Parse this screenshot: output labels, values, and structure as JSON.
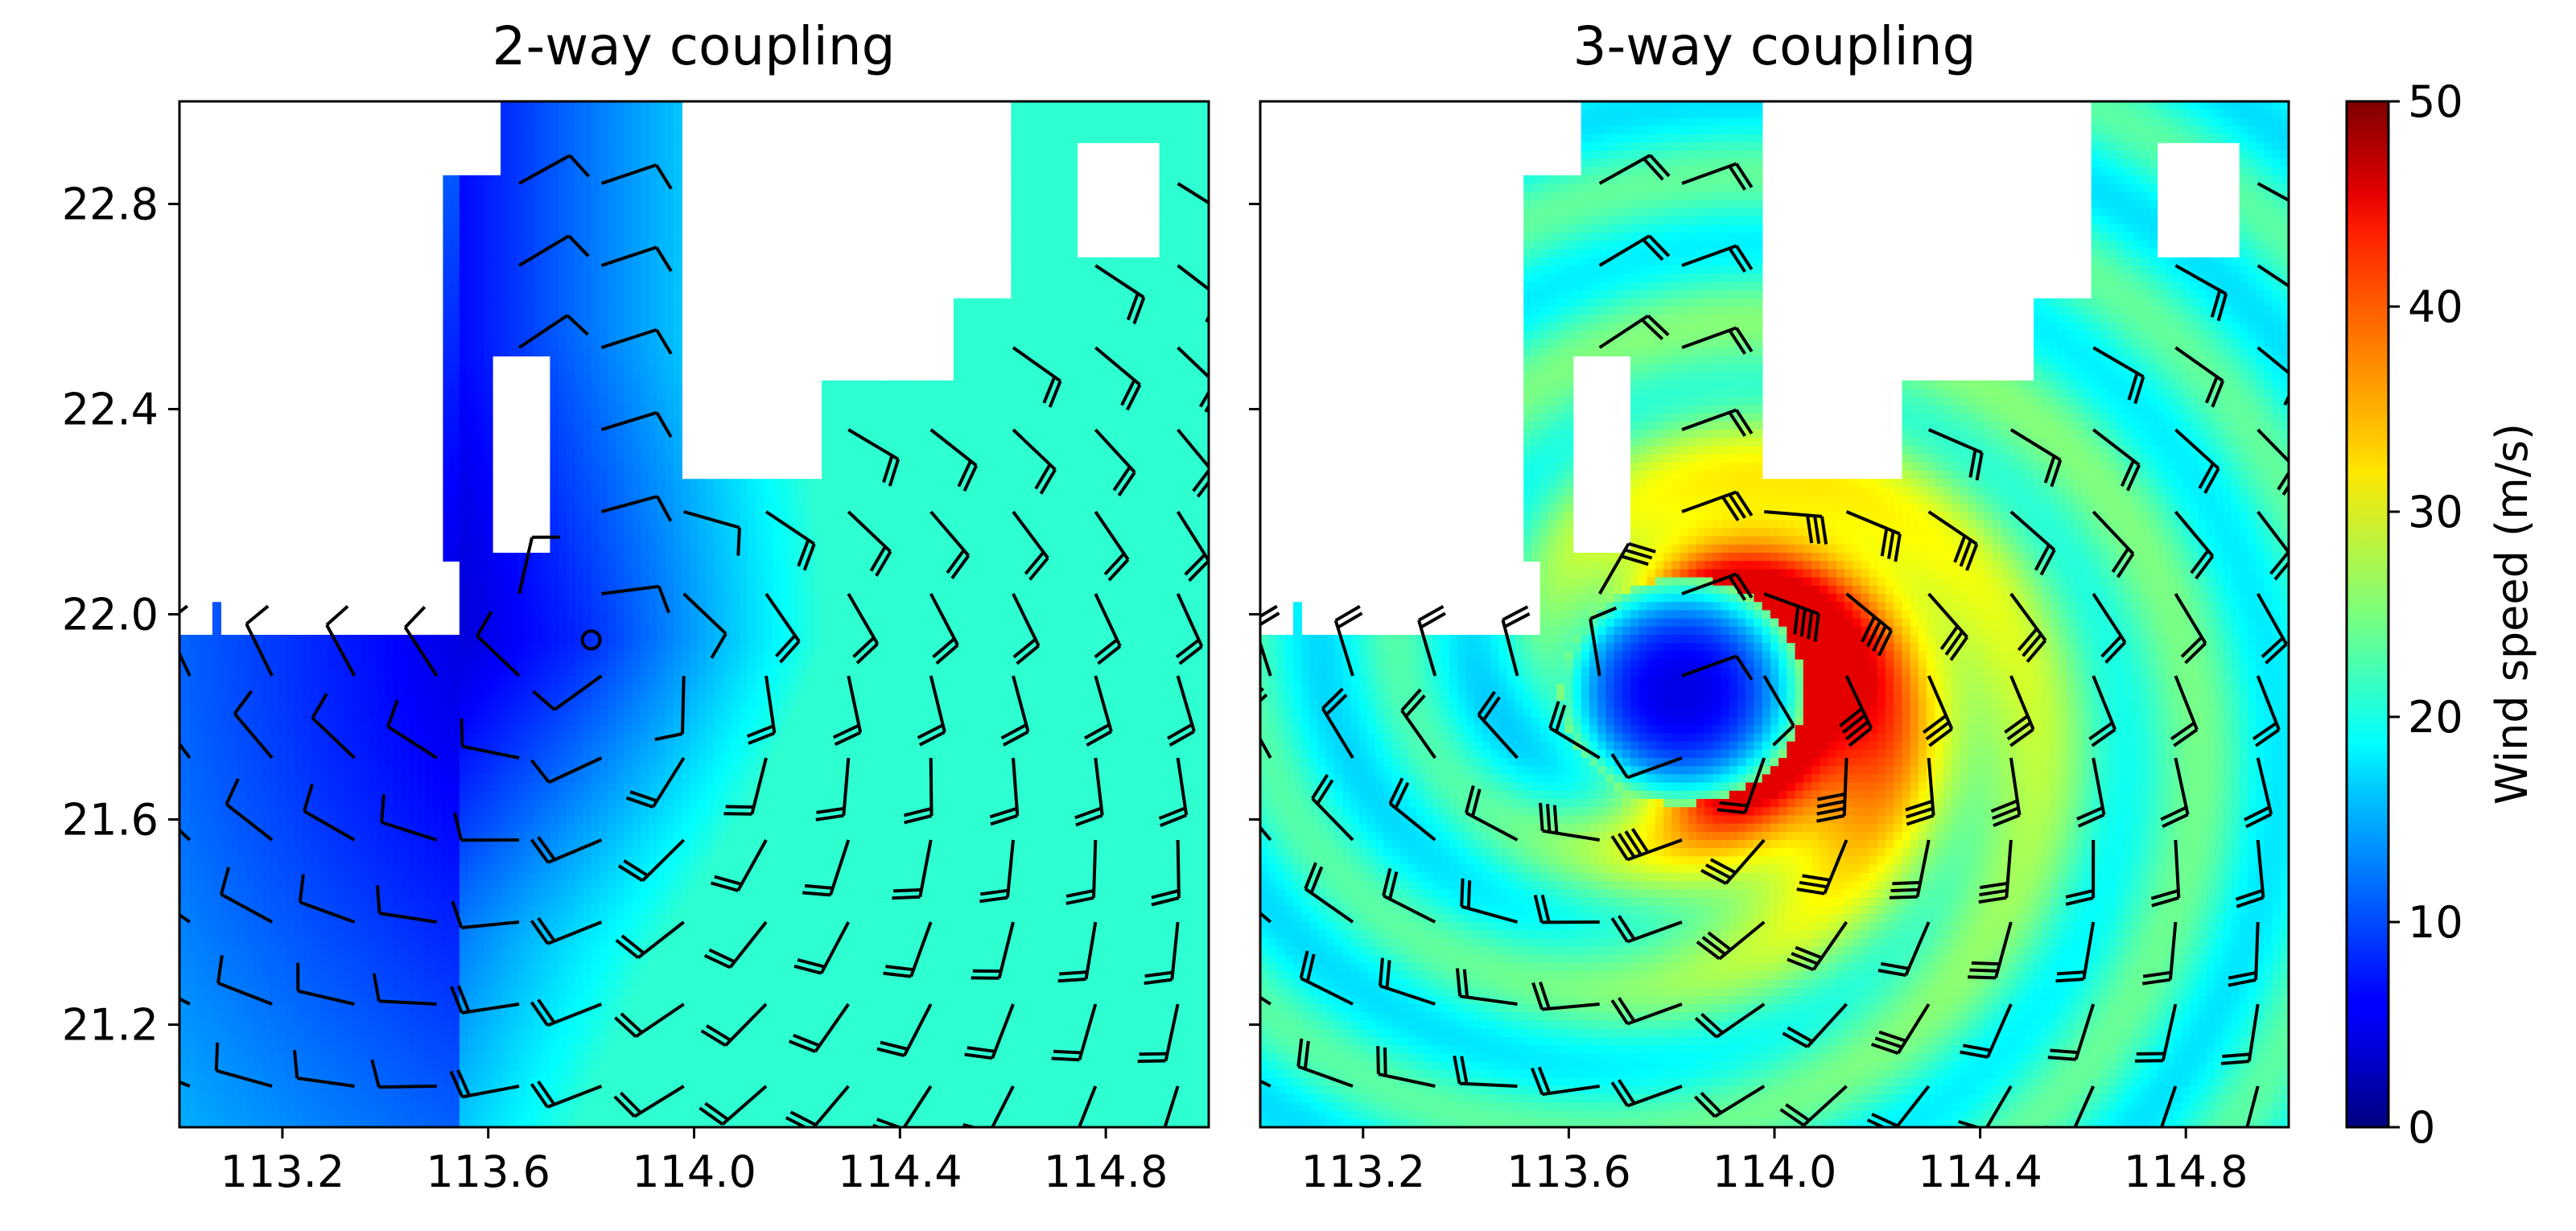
{
  "chart_data": {
    "type": "heatmap",
    "colormap": "jet",
    "colorbar": {
      "label": "Wind speed (m/s)",
      "range": [
        0,
        50
      ],
      "ticks": [
        0,
        10,
        20,
        30,
        40,
        50
      ],
      "tick_labels": [
        "0",
        "10",
        "20",
        "30",
        "40",
        "50"
      ],
      "placement": "right"
    },
    "panels": [
      {
        "title": "2-way coupling",
        "xlim": [
          113.0,
          115.0
        ],
        "ylim": [
          21.0,
          23.0
        ],
        "xticks": [
          113.2,
          113.6,
          114.0,
          114.4,
          114.8
        ],
        "xtick_labels": [
          "113.2",
          "113.6",
          "114.0",
          "114.4",
          "114.8"
        ],
        "yticks": [
          21.2,
          21.6,
          22.0,
          22.4,
          22.8
        ],
        "ytick_labels": [
          "21.2",
          "21.6",
          "22.0",
          "22.4",
          "22.8"
        ],
        "field_description": "blue (<8 m/s) near the typhoon centre, increasing eastward to ~20 m/s",
        "typhoon_center": [
          113.8,
          21.95
        ],
        "center_speed": 3,
        "max_speed": 21,
        "marker": "open circle at centre",
        "wind_barbs": "cyclonic (counter-clockwise) barbs on a 0.16° grid"
      },
      {
        "title": "3-way coupling",
        "xlim": [
          113.0,
          115.0
        ],
        "ylim": [
          21.0,
          23.0
        ],
        "xticks": [
          113.2,
          113.6,
          114.0,
          114.4,
          114.8
        ],
        "xtick_labels": [
          "113.2",
          "113.6",
          "114.0",
          "114.4",
          "114.8"
        ],
        "field_description": "eye ~5 m/s, eyewall maximum ~45 m/s to the east, ~20 m/s background",
        "typhoon_center": [
          113.82,
          21.85
        ],
        "center_speed": 5,
        "max_speed": 45,
        "wind_barbs": "cyclonic barbs on a 0.16° grid"
      }
    ]
  }
}
